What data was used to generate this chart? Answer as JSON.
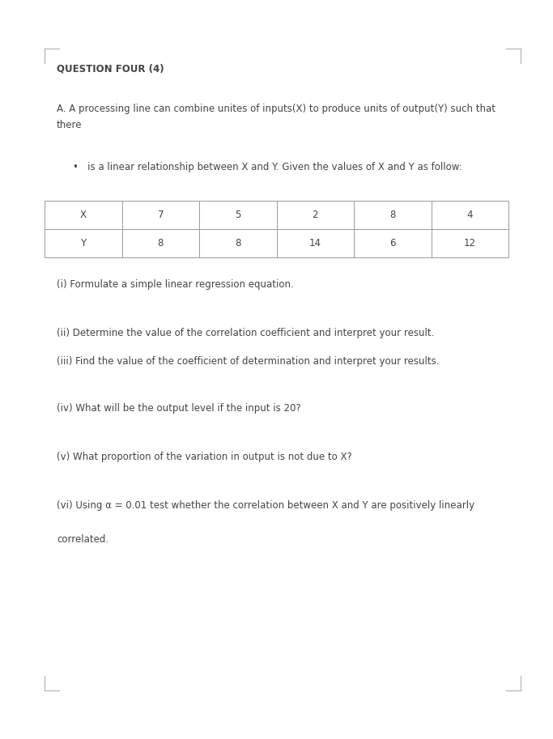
{
  "bg_color": "#ffffff",
  "text_color": "#444444",
  "title": "QUESTION FOUR (4)",
  "title_fontsize": 8.5,
  "body_fontsize": 8.5,
  "question_text_A": "A. A processing line can combine unites of inputs(X) to produce units of output(Y) such that\nthere",
  "bullet_text": "•   is a linear relationship between X and Y. Given the values of X and Y as follow:",
  "table_x_vals": [
    "X",
    "7",
    "5",
    "2",
    "8",
    "4"
  ],
  "table_y_vals": [
    "Y",
    "8",
    "8",
    "14",
    "6",
    "12"
  ],
  "questions": [
    "(i) Formulate a simple linear regression equation.",
    "(ii) Determine the value of the correlation coefficient and interpret your result.",
    "(iii) Find the value of the coefficient of determination and interpret your results.",
    "(iv) What will be the output level if the input is 20?",
    "(v) What proportion of the variation in output is not due to X?",
    "(vi) Using α = 0.01 test whether the correlation between X and Y are positively linearly\n\ncorrelated."
  ],
  "corner_color": "#bbbbbb",
  "fig_width": 6.83,
  "fig_height": 9.13,
  "dpi": 100
}
